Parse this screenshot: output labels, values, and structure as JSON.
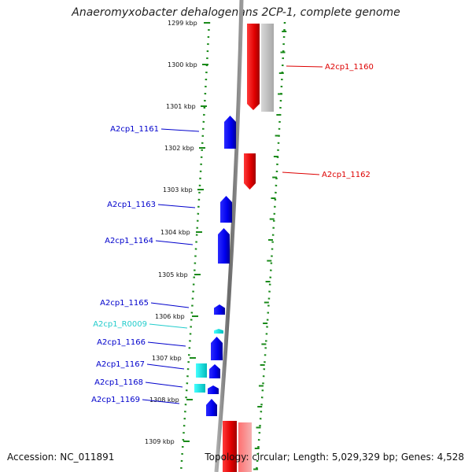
{
  "title": "Anaeromyxobacter dehalogenans 2CP-1, complete genome",
  "accession": "Accession: NC_011891",
  "summary": "Topology: circular; Length: 5,029,329 bp; Genes: 4,528",
  "colors": {
    "forward_gene": "#1a1aff",
    "reverse_gene": "#ee1111",
    "rna_gene": "#22dddd",
    "backbone": "#888888",
    "tick": "#1a8a1a"
  },
  "ticks": [
    {
      "label": "1299 kbp"
    },
    {
      "label": "1300 kbp"
    },
    {
      "label": "1301 kbp"
    },
    {
      "label": "1302 kbp"
    },
    {
      "label": "1303 kbp"
    },
    {
      "label": "1304 kbp"
    },
    {
      "label": "1305 kbp"
    },
    {
      "label": "1306 kbp"
    },
    {
      "label": "1307 kbp"
    },
    {
      "label": "1308 kbp"
    },
    {
      "label": "1309 kbp"
    }
  ],
  "genes_left": [
    {
      "label": "A2cp1_1161",
      "type": "forward"
    },
    {
      "label": "A2cp1_1163",
      "type": "forward"
    },
    {
      "label": "A2cp1_1164",
      "type": "forward"
    },
    {
      "label": "A2cp1_1165",
      "type": "forward"
    },
    {
      "label": "A2cp1_R0009",
      "type": "rna"
    },
    {
      "label": "A2cp1_1166",
      "type": "forward"
    },
    {
      "label": "A2cp1_1167",
      "type": "forward"
    },
    {
      "label": "A2cp1_1168",
      "type": "forward"
    },
    {
      "label": "A2cp1_1169",
      "type": "forward"
    }
  ],
  "genes_right": [
    {
      "label": "A2cp1_1160",
      "type": "reverse"
    },
    {
      "label": "A2cp1_1162",
      "type": "reverse"
    }
  ]
}
